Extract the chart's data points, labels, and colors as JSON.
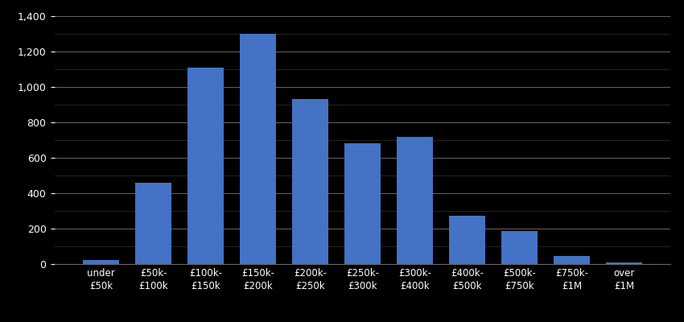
{
  "categories": [
    "under\n£50k",
    "£50k-\n£100k",
    "£100k-\n£150k",
    "£150k-\n£200k",
    "£200k-\n£250k",
    "£250k-\n£300k",
    "£300k-\n£400k",
    "£400k-\n£500k",
    "£500k-\n£750k",
    "£750k-\n£1M",
    "over\n£1M"
  ],
  "values": [
    25,
    460,
    1110,
    1300,
    930,
    680,
    720,
    275,
    185,
    45,
    10
  ],
  "bar_color": "#4472c4",
  "background_color": "#000000",
  "text_color": "#ffffff",
  "grid_color": "#666666",
  "minor_grid_color": "#333333",
  "ylim": [
    0,
    1400
  ],
  "yticks": [
    0,
    200,
    400,
    600,
    800,
    1000,
    1200,
    1400
  ],
  "title": "",
  "xlabel": "",
  "ylabel": ""
}
